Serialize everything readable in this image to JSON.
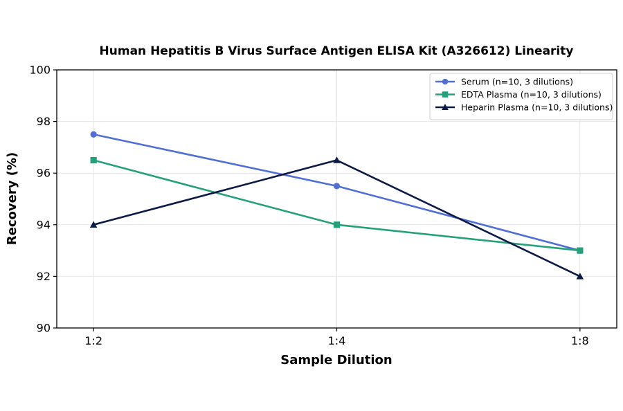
{
  "chart_data": {
    "type": "line",
    "title": "Human Hepatitis B Virus Surface Antigen ELISA Kit (A326612) Linearity",
    "xlabel": "Sample Dilution",
    "ylabel": "Recovery (%)",
    "categories": [
      "1:2",
      "1:4",
      "1:8"
    ],
    "ylim": [
      90,
      100
    ],
    "yticks": [
      90,
      92,
      94,
      96,
      98,
      100
    ],
    "grid": true,
    "legend_position": "top-right",
    "series": [
      {
        "name": "Serum (n=10, 3 dilutions)",
        "values": [
          97.5,
          95.5,
          93.0
        ],
        "color": "#4f6fd6",
        "marker": "circle"
      },
      {
        "name": "EDTA Plasma (n=10, 3 dilutions)",
        "values": [
          96.5,
          94.0,
          93.0
        ],
        "color": "#24a07a",
        "marker": "square"
      },
      {
        "name": "Heparin Plasma (n=10, 3 dilutions)",
        "values": [
          94.0,
          96.5,
          92.0
        ],
        "color": "#0d1a45",
        "marker": "triangle"
      }
    ]
  }
}
